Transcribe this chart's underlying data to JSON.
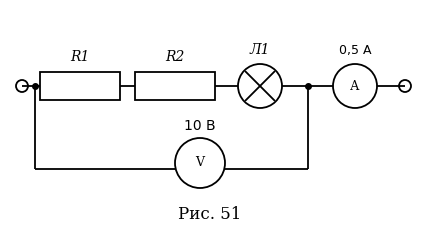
{
  "bg_color": "#ffffff",
  "wire_color": "#000000",
  "component_color": "#000000",
  "line_width": 1.3,
  "title": "Рис. 51",
  "title_fontsize": 12,
  "R1_label": "R1",
  "R2_label": "R2",
  "lamp_label": "Л1",
  "ammeter_label": "А",
  "ammeter_value": "0,5 А",
  "voltmeter_label": "V",
  "voltmeter_value": "10 В",
  "fig_width": 4.23,
  "fig_height": 2.31,
  "xlim": [
    0,
    42.3
  ],
  "ylim": [
    0,
    23.1
  ]
}
